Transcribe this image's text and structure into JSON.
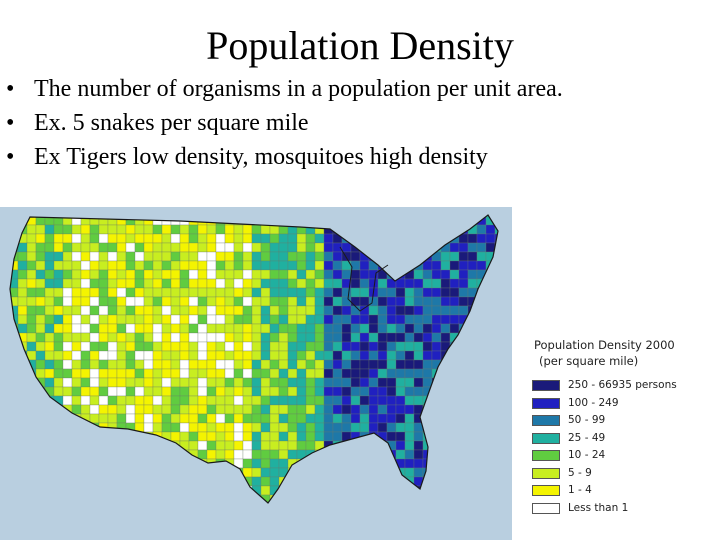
{
  "slide": {
    "title": "Population Density",
    "bullets": [
      "The number of organisms in a population per unit area.",
      "Ex. 5 snakes per square mile",
      "Ex Tigers low density, mosquitoes high density"
    ],
    "bullet_symbol": "•"
  },
  "map": {
    "water_color": "#b9cfe0",
    "land_outline_color": "#1a1a1a",
    "legend": {
      "title": "Population Density 2000",
      "subtitle": "(per square mile)",
      "items": [
        {
          "label": "250 - 66935 persons",
          "color": "#1a1a7a"
        },
        {
          "label": "100 - 249",
          "color": "#2020c0"
        },
        {
          "label": "50 - 99",
          "color": "#1e78a8"
        },
        {
          "label": "25 - 49",
          "color": "#20b0a0"
        },
        {
          "label": "10 - 24",
          "color": "#60cc40"
        },
        {
          "label": "5 - 9",
          "color": "#c8ee20"
        },
        {
          "label": "1 - 4",
          "color": "#f4f400"
        },
        {
          "label": "Less than 1",
          "color": "#ffffff"
        }
      ]
    }
  }
}
